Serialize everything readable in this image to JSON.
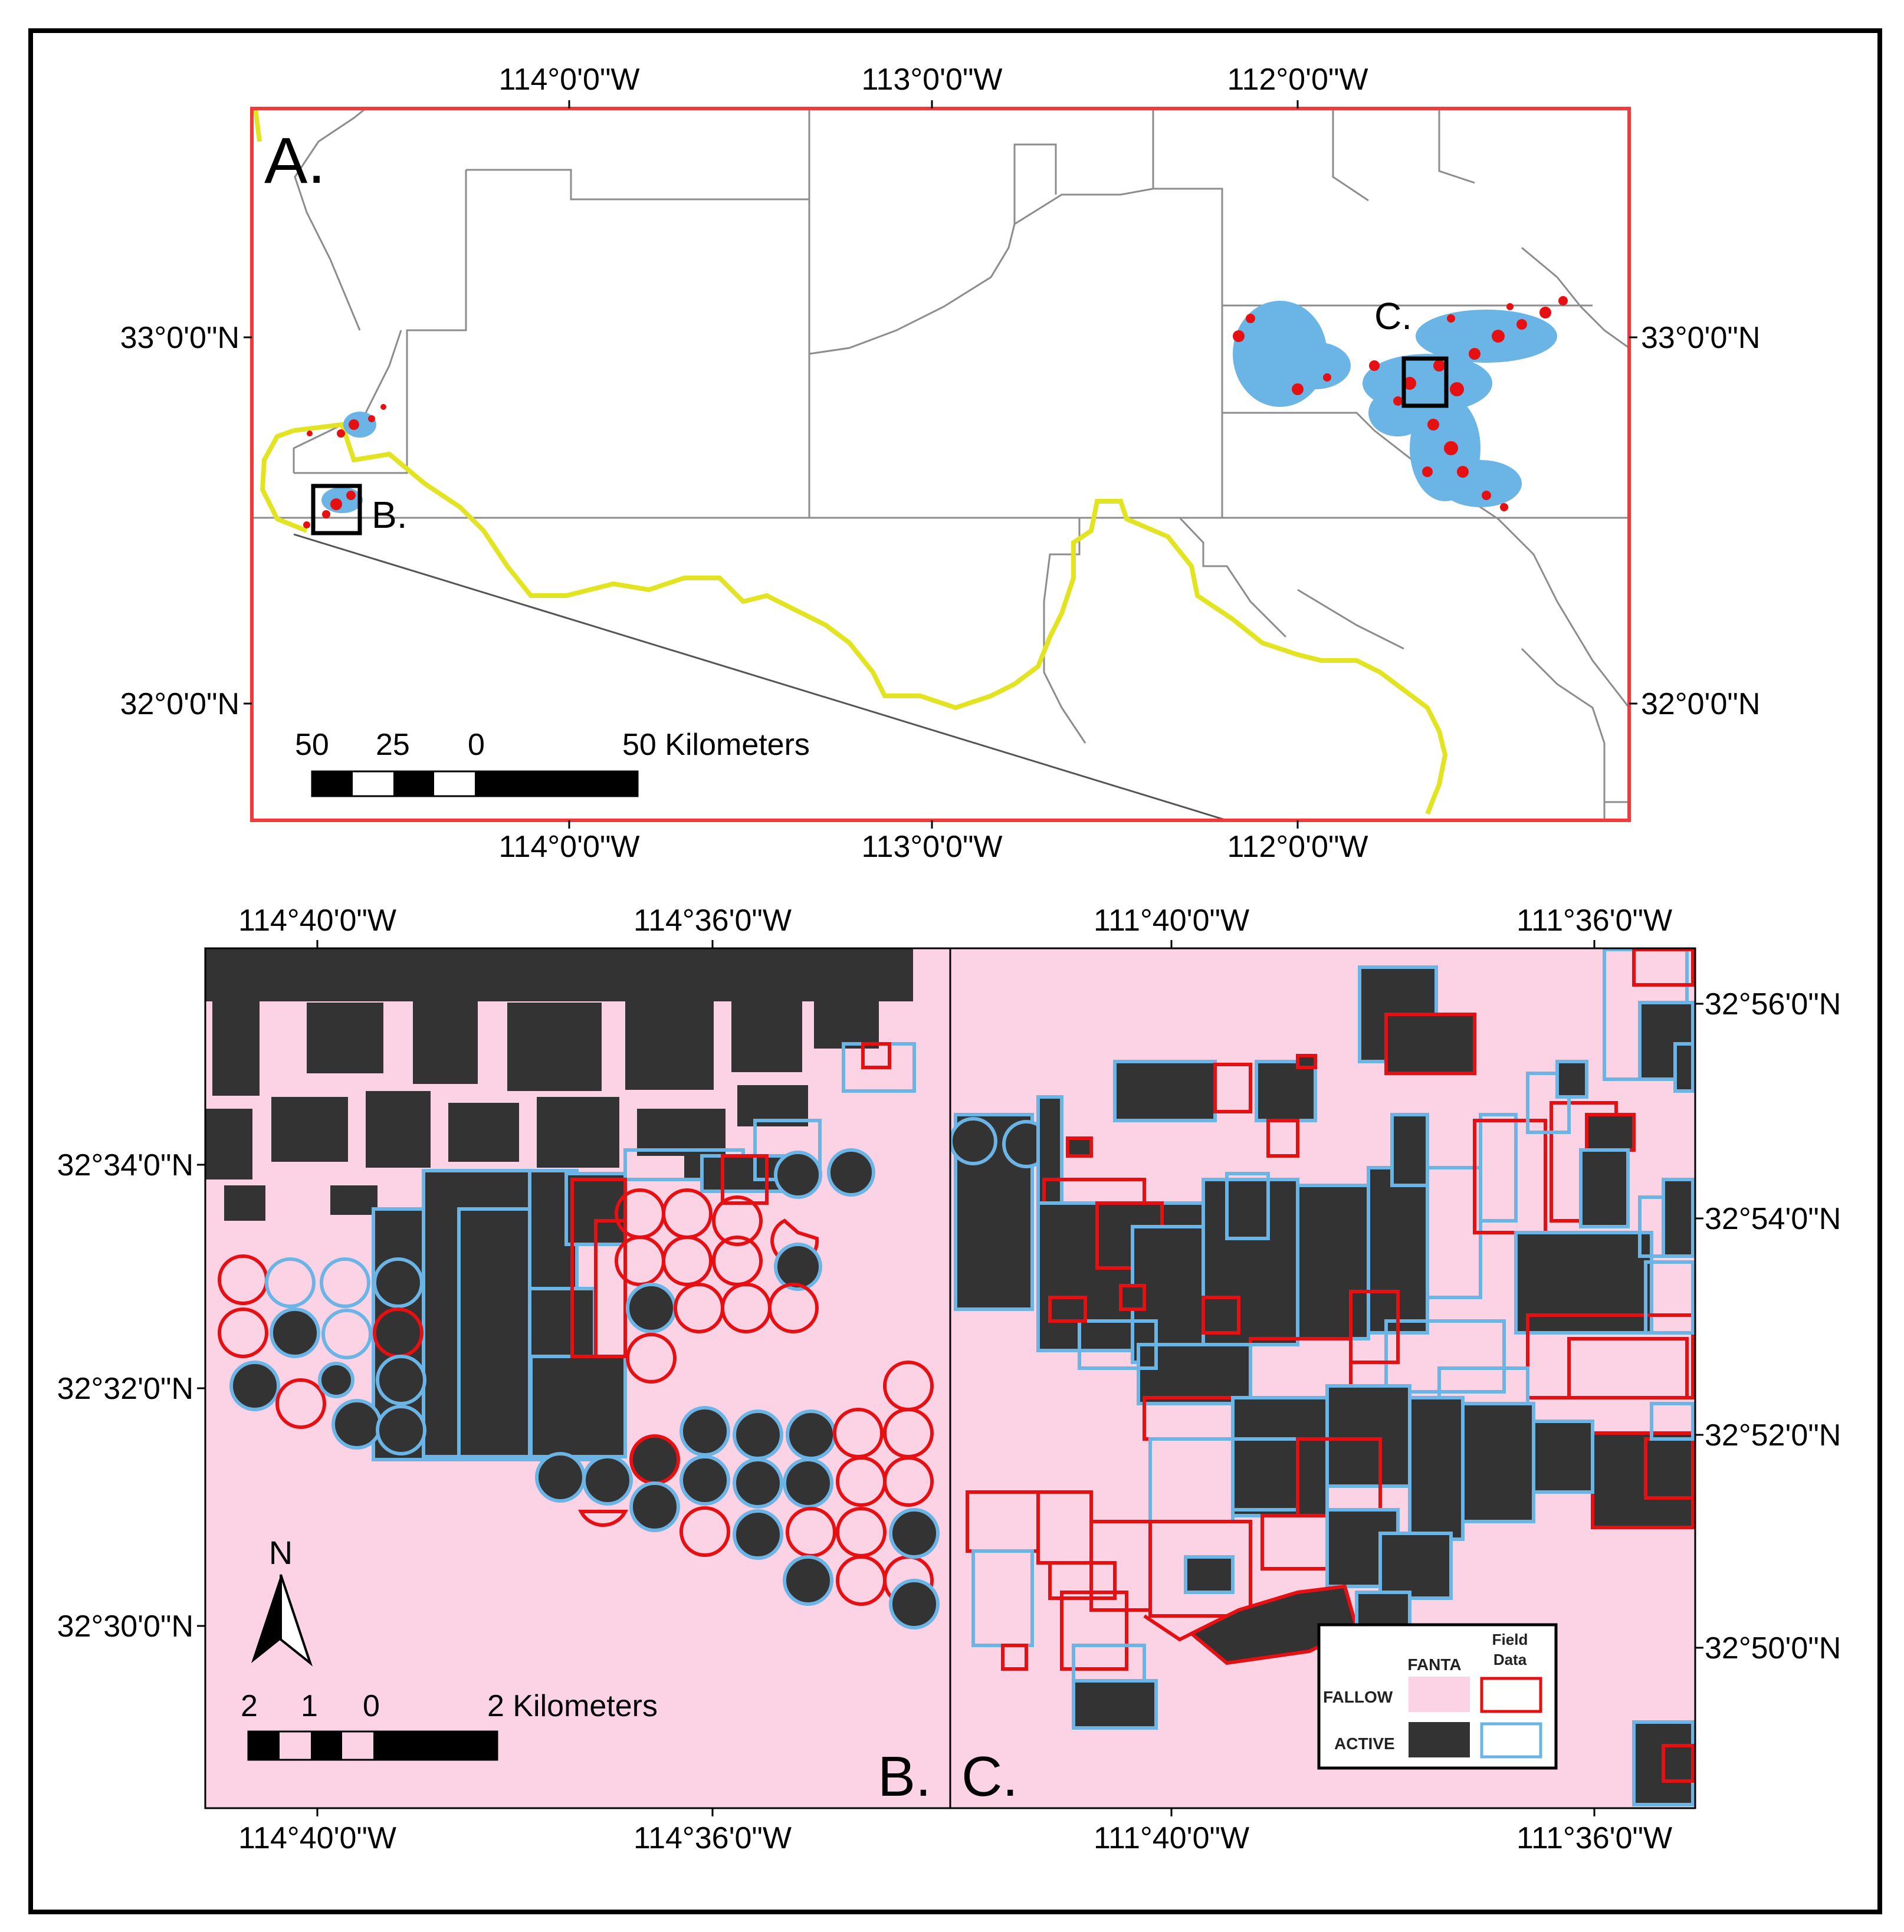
{
  "colors": {
    "fallow_fanta": "#fbd3e5",
    "active_fanta": "#333333",
    "field_fallow": "#e60f12",
    "field_active": "#6ab4e6",
    "panel_a_border": "#ef3b3b",
    "boundary_line": "#e2e421",
    "county_lines": "#8c8c8c",
    "frame": "#000000"
  },
  "panel_a": {
    "label": "A.",
    "box_b_label": "B.",
    "box_c_label": "C.",
    "top_lon_labels": [
      "114°0'0\"W",
      "113°0'0\"W",
      "112°0'0\"W"
    ],
    "bottom_lon_labels": [
      "114°0'0\"W",
      "113°0'0\"W",
      "112°0'0\"W"
    ],
    "left_lat_labels": [
      "33°0'0\"N",
      "32°0'0\"N"
    ],
    "right_lat_labels": [
      "33°0'0\"N",
      "32°0'0\"N"
    ],
    "scale_bar": {
      "labels": [
        "50",
        "25",
        "0",
        "50 Kilometers"
      ]
    }
  },
  "panel_b": {
    "label": "B.",
    "top_lon_labels": [
      "114°40'0\"W",
      "114°36'0\"W"
    ],
    "bottom_lon_labels": [
      "114°40'0\"W",
      "114°36'0\"W"
    ],
    "left_lat_labels": [
      "32°34'0\"N",
      "32°32'0\"N",
      "32°30'0\"N"
    ],
    "north_arrow": "N",
    "scale_bar": {
      "labels": [
        "2",
        "1",
        "0",
        "2 Kilometers"
      ]
    }
  },
  "panel_c": {
    "label": "C.",
    "top_lon_labels": [
      "111°40'0\"W",
      "111°36'0\"W"
    ],
    "bottom_lon_labels": [
      "111°40'0\"W",
      "111°36'0\"W"
    ],
    "right_lat_labels": [
      "32°56'0\"N",
      "32°54'0\"N",
      "32°52'0\"N",
      "32°50'0\"N"
    ]
  },
  "legend": {
    "col_fanta": "FANTA",
    "col_field_line1": "Field",
    "col_field_line2": "Data",
    "row_fallow": "FALLOW",
    "row_active": "ACTIVE"
  }
}
